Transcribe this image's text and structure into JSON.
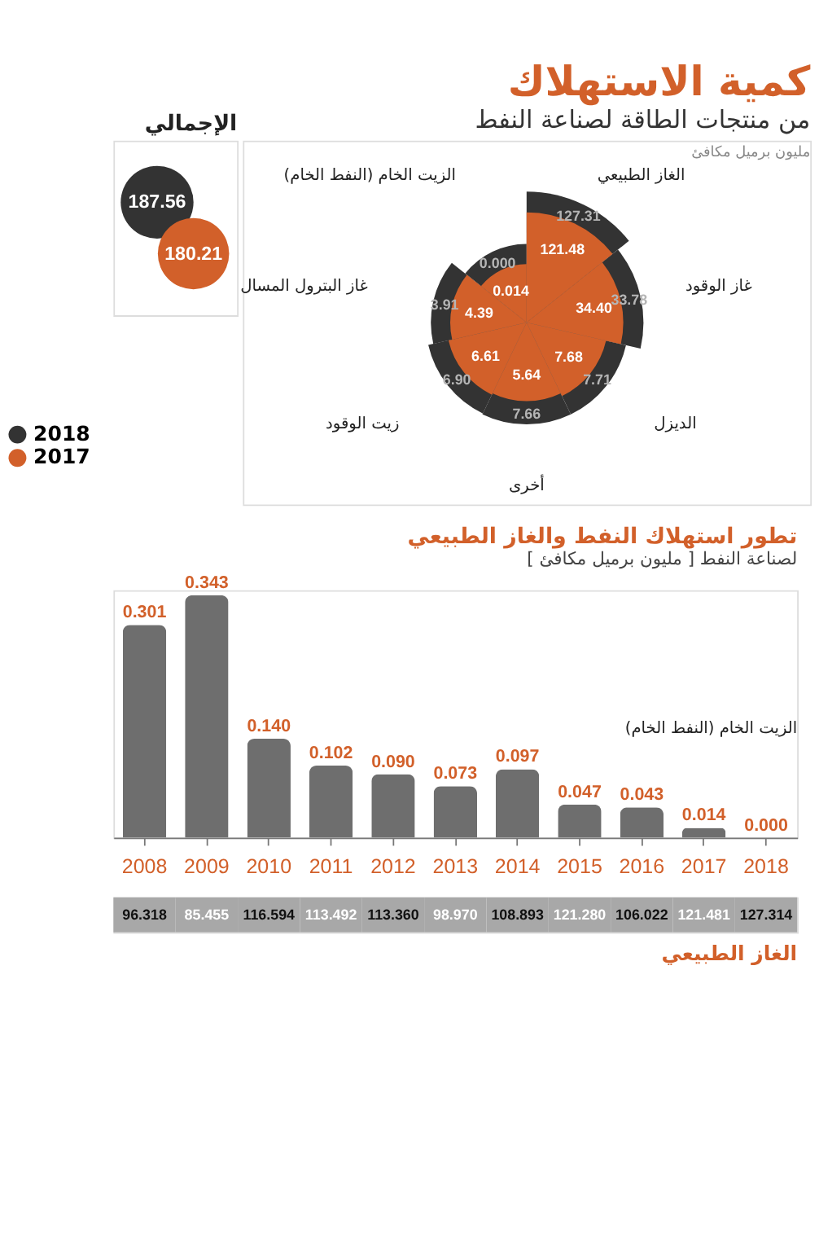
{
  "chart_data": [
    {
      "type": "other",
      "title": "كمية الاستهلاك",
      "subtitle": "من منتجات الطاقة لصناعة النفط",
      "categories": [
        "الغاز الطبيعي",
        "غاز الوقود",
        "الديزل",
        "أخرى",
        "زيت الوقود",
        "غاز البترول المسال",
        "الزيت الخام (النفط الخام)"
      ],
      "series": [
        {
          "name": "2018",
          "color": "#333333",
          "values": [
            127.31,
            33.78,
            7.71,
            7.66,
            6.9,
            3.91,
            0.0
          ],
          "value_labels": [
            "127.31",
            "33.78",
            "7.71",
            "7.66",
            "6.90",
            "3.91",
            "0.000"
          ]
        },
        {
          "name": "2017",
          "color": "#d2602a",
          "values": [
            121.48,
            34.4,
            7.68,
            5.64,
            6.61,
            4.39,
            0.014
          ],
          "value_labels": [
            "121.48",
            "34.40",
            "7.68",
            "5.64",
            "6.61",
            "4.39",
            "0.014"
          ]
        }
      ],
      "legend": "left",
      "annotations": [
        "مليون برميل مكافئ"
      ]
    },
    {
      "type": "other",
      "title": "الإجمالي",
      "values": [
        187.56,
        180.21
      ],
      "colors": [
        "#333333",
        "#d2602a"
      ],
      "value_labels": [
        "187.56",
        "180.21"
      ]
    },
    {
      "type": "bar",
      "title": "تطور استهلاك النفط والغاز الطبيعي",
      "subtitle": "لصناعة النفط [ مليون برميل مكافئ ]",
      "categories": [
        "2008",
        "2009",
        "2010",
        "2011",
        "2012",
        "2013",
        "2014",
        "2015",
        "2016",
        "2017",
        "2018"
      ],
      "series": [
        {
          "name": "الزيت الخام (النفط الخام)",
          "color": "#6e6e6e",
          "values": [
            0.301,
            0.343,
            0.14,
            0.102,
            0.09,
            0.073,
            0.097,
            0.047,
            0.043,
            0.014,
            0.0
          ],
          "value_labels": [
            "0.301",
            "0.343",
            "0.140",
            "0.102",
            "0.090",
            "0.073",
            "0.097",
            "0.047",
            "0.043",
            "0.014",
            "0.000"
          ]
        }
      ]
    },
    {
      "type": "other",
      "title": "الغاز الطبيعي",
      "values": [
        96.318,
        85.455,
        116.594,
        113.492,
        113.36,
        98.97,
        108.893,
        121.28,
        106.022,
        121.481,
        127.314
      ],
      "value_labels": [
        "96.318",
        "85.455",
        "116.594",
        "113.492",
        "113.360",
        "98.970",
        "108.893",
        "121.280",
        "106.022",
        "121.481",
        "127.314"
      ]
    }
  ]
}
